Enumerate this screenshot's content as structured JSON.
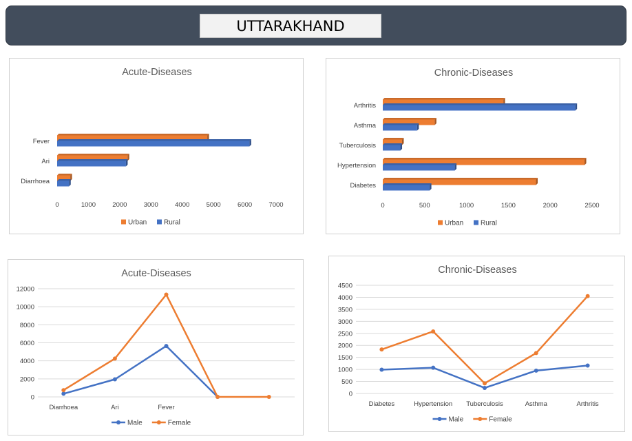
{
  "header": {
    "title": "UTTARAKHAND"
  },
  "colors": {
    "urban": "#ed7d31",
    "rural": "#4472c4",
    "male": "#4472c4",
    "female": "#ed7d31",
    "banner": "#424d5c",
    "grid": "#d9d9d9"
  },
  "chart_data": [
    {
      "type": "bar",
      "orientation": "horizontal",
      "title": "Acute-Diseases",
      "categories": [
        "Diarrhoea",
        "Ari",
        "Fever"
      ],
      "series": [
        {
          "name": "Urban",
          "values": [
            420,
            2250,
            4800
          ]
        },
        {
          "name": "Rural",
          "values": [
            380,
            2200,
            6150
          ]
        }
      ],
      "xlim": [
        0,
        7000
      ],
      "ticks": [
        "0",
        "1000",
        "2000",
        "3000",
        "4000",
        "5000",
        "6000",
        "7000"
      ],
      "legend": "bottom",
      "grid": false
    },
    {
      "type": "bar",
      "orientation": "horizontal",
      "title": "Chronic-Diseases",
      "categories": [
        "Diabetes",
        "Hypertension",
        "Tuberculosis",
        "Asthma",
        "Arthritis"
      ],
      "series": [
        {
          "name": "Urban",
          "values": [
            1830,
            2410,
            230,
            620,
            1440
          ]
        },
        {
          "name": "Rural",
          "values": [
            560,
            860,
            210,
            410,
            2300
          ]
        }
      ],
      "xlim": [
        0,
        2500
      ],
      "ticks": [
        "0",
        "500",
        "1000",
        "1500",
        "2000",
        "2500"
      ],
      "legend": "bottom",
      "grid": false
    },
    {
      "type": "line",
      "title": "Acute-Diseases",
      "categories": [
        "Diarrhoea",
        "Ari",
        "Fever",
        "",
        ""
      ],
      "series": [
        {
          "name": "Male",
          "values": [
            350,
            1950,
            5650,
            0,
            null
          ]
        },
        {
          "name": "Female",
          "values": [
            750,
            4250,
            11350,
            0,
            0
          ]
        }
      ],
      "ylim": [
        0,
        12000
      ],
      "ticks": [
        "0",
        "2000",
        "4000",
        "6000",
        "8000",
        "10000",
        "12000"
      ],
      "legend": "bottom",
      "grid": true
    },
    {
      "type": "line",
      "title": "Chronic-Diseases",
      "categories": [
        "Diabetes",
        "Hypertension",
        "Tuberculosis",
        "Asthma",
        "Arthritis"
      ],
      "series": [
        {
          "name": "Male",
          "values": [
            990,
            1070,
            230,
            950,
            1160
          ]
        },
        {
          "name": "Female",
          "values": [
            1830,
            2580,
            420,
            1680,
            4050
          ]
        }
      ],
      "ylim": [
        0,
        4500
      ],
      "ticks": [
        "0",
        "500",
        "1000",
        "1500",
        "2000",
        "2500",
        "3000",
        "3500",
        "4000",
        "4500"
      ],
      "legend": "bottom",
      "grid": true
    }
  ]
}
